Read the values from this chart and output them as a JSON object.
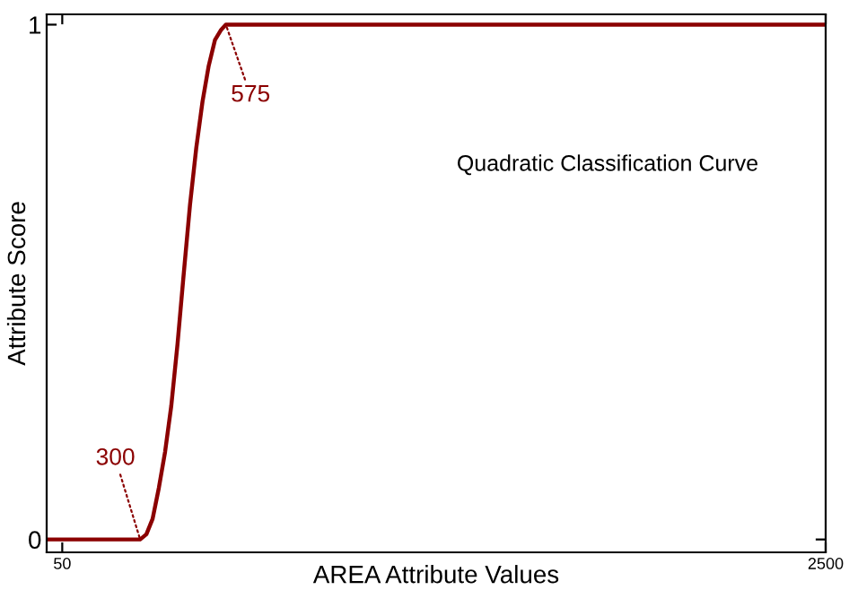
{
  "chart_data": {
    "type": "line",
    "xlabel": "AREA Attribute Values",
    "ylabel": "Attribute Score",
    "series": [
      {
        "color": "#8b0000",
        "x": [
          0,
          300,
          320,
          340,
          360,
          380,
          400,
          420,
          437.5,
          460,
          480,
          500,
          520,
          540,
          560,
          575,
          2500
        ],
        "values": [
          0,
          0,
          0.01,
          0.04,
          0.1,
          0.17,
          0.26,
          0.38,
          0.5,
          0.65,
          0.76,
          0.85,
          0.92,
          0.97,
          0.99,
          1,
          1
        ]
      }
    ],
    "xlim": [
      0,
      2500
    ],
    "ylim": [
      -0.025,
      1.02
    ],
    "xticks": [
      50,
      2500
    ],
    "yticks": [
      0,
      1
    ],
    "grid": false,
    "legend": false,
    "marker": "none",
    "line_style": "solid",
    "annotations": [
      {
        "text": "300",
        "x": 300,
        "y": 0
      },
      {
        "text": "575",
        "x": 575,
        "y": 1
      },
      "Quadratic Classification Curve"
    ]
  }
}
